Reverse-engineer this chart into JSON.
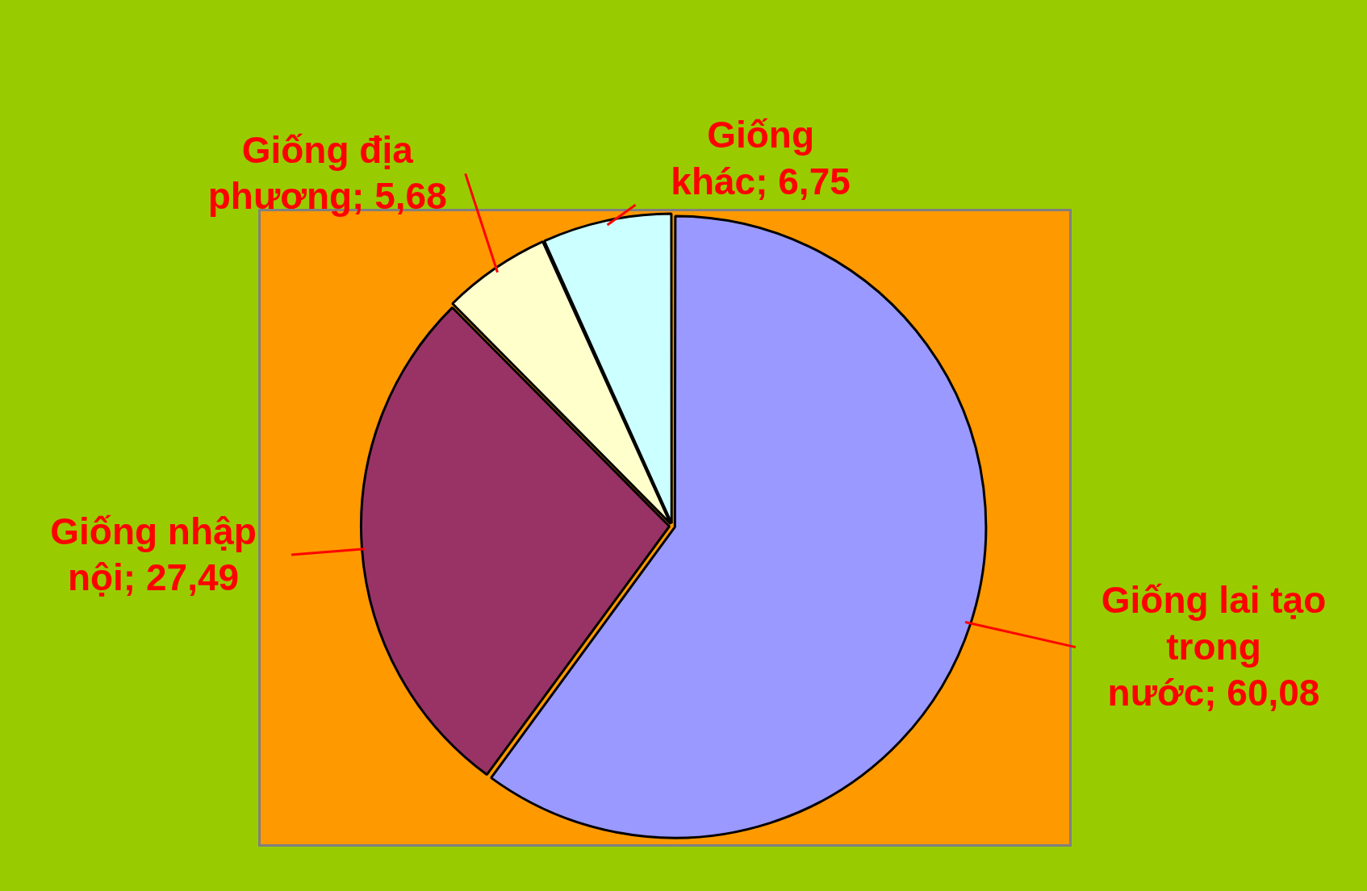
{
  "chart_data": {
    "type": "pie",
    "categories": [
      "Giống lai tạo trong nước",
      "Giống nhập nội",
      "Giống địa phương",
      "Giống khác"
    ],
    "values": [
      60.08,
      27.49,
      5.68,
      6.75
    ],
    "value_labels": [
      "60,08",
      "27,49",
      "5,68",
      "6,75"
    ],
    "colors": [
      "#9999ff",
      "#993366",
      "#ffffcc",
      "#ccffff"
    ],
    "legend": false
  }
}
